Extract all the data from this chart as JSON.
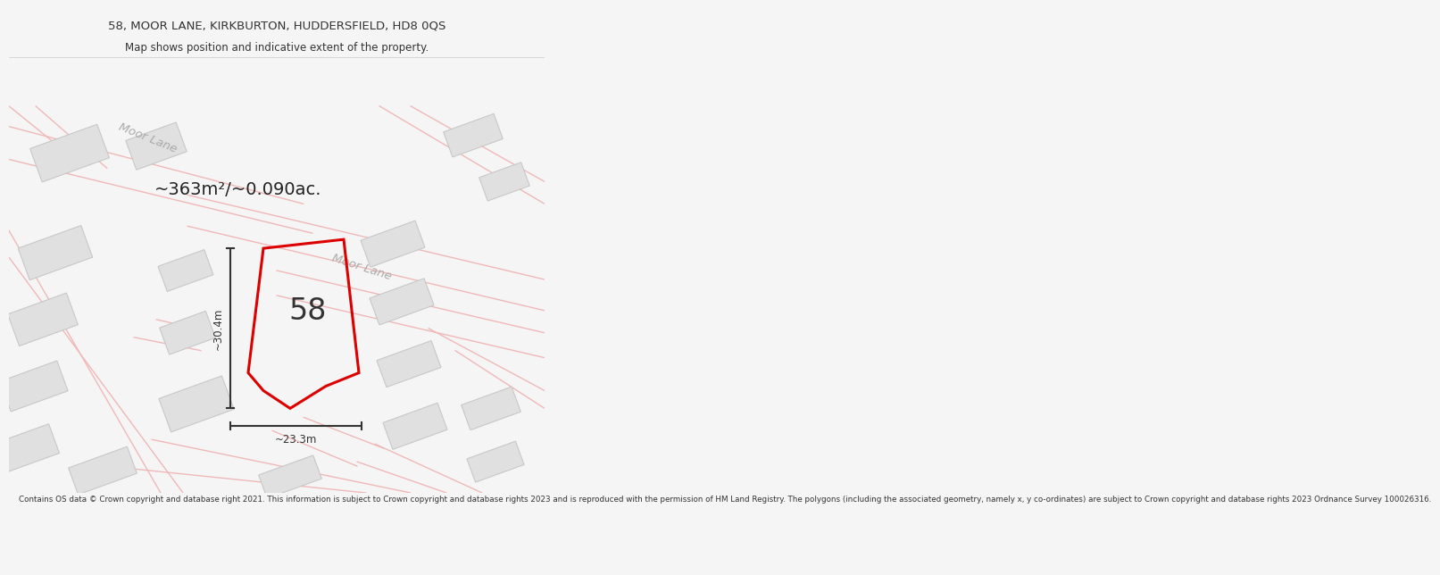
{
  "title_line1": "58, MOOR LANE, KIRKBURTON, HUDDERSFIELD, HD8 0QS",
  "title_line2": "Map shows position and indicative extent of the property.",
  "area_label": "~363m²/~0.090ac.",
  "dim_vertical": "~30.4m",
  "dim_horizontal": "~23.3m",
  "number_label": "58",
  "street_label1": "Moor Lane",
  "street_label2": "Moor Lane",
  "copyright_text": "Contains OS data © Crown copyright and database right 2021. This information is subject to Crown copyright and database rights 2023 and is reproduced with the permission of HM Land Registry. The polygons (including the associated geometry, namely x, y co-ordinates) are subject to Crown copyright and database rights 2023 Ordnance Survey 100026316.",
  "bg_color": "#f5f5f5",
  "map_bg": "#ffffff",
  "road_color": "#f0b8b8",
  "building_color": "#e0e0e0",
  "building_edge": "#c8c8c8",
  "property_color": "#dd0000",
  "dim_color": "#333333",
  "street_label_color": "#aaaaaa",
  "title_color": "#333333",
  "copyright_color": "#333333",
  "area_label_color": "#222222"
}
